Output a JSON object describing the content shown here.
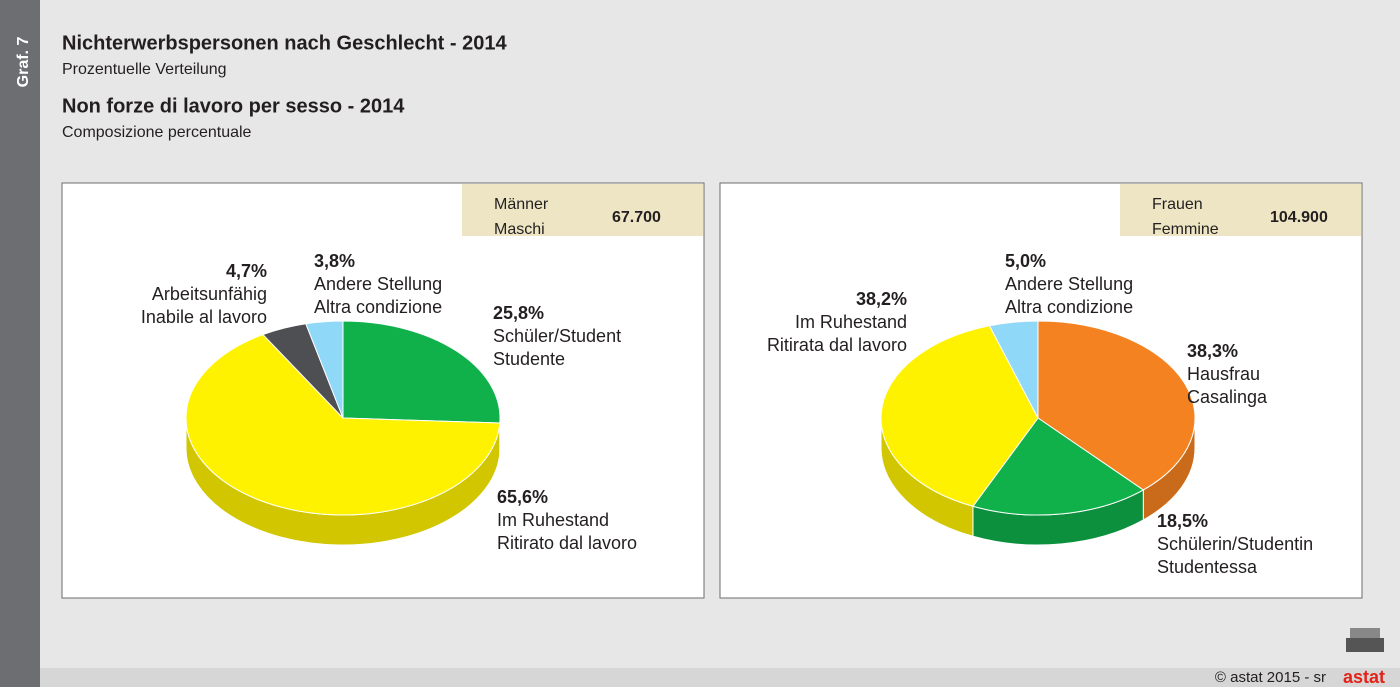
{
  "header": {
    "graph_label": "Graf. 7",
    "title_de": "Nichterwerbspersonen nach Geschlecht - 2014",
    "subtitle_de": "Prozentuelle Verteilung",
    "title_it": "Non forze di lavoro per sesso - 2014",
    "subtitle_it": "Composizione percentuale"
  },
  "chart_data": [
    {
      "type": "pie",
      "box_label_de": "Männer",
      "box_label_it": "Maschi",
      "box_total": "67.700",
      "categories": [
        "Schüler/Student",
        "Im Ruhestand",
        "Arbeitsunfähig",
        "Andere Stellung"
      ],
      "categories_it": [
        "Studente",
        "Ritirato dal lavoro",
        "Inabile al lavoro",
        "Altra condizione"
      ],
      "values": [
        25.8,
        65.6,
        4.7,
        3.8
      ],
      "value_labels": [
        "25,8%",
        "65,6%",
        "4,7%",
        "3,8%"
      ],
      "colors": [
        "#10b04b",
        "#fff200",
        "#4d4f53",
        "#8fd8f8"
      ]
    },
    {
      "type": "pie",
      "box_label_de": "Frauen",
      "box_label_it": "Femmine",
      "box_total": "104.900",
      "categories": [
        "Hausfrau",
        "Schülerin/Studentin",
        "Im Ruhestand",
        "Andere Stellung"
      ],
      "categories_it": [
        "Casalinga",
        "Studentessa",
        "Ritirata dal lavoro",
        "Altra condizione"
      ],
      "values": [
        38.3,
        18.5,
        38.2,
        5.0
      ],
      "value_labels": [
        "38,3%",
        "18,5%",
        "38,2%",
        "5,0%"
      ],
      "colors": [
        "#f58220",
        "#10b04b",
        "#fff200",
        "#8fd8f8"
      ]
    }
  ],
  "footer": {
    "copyright": "©  astat 2015 - sr",
    "logo": "astat"
  }
}
